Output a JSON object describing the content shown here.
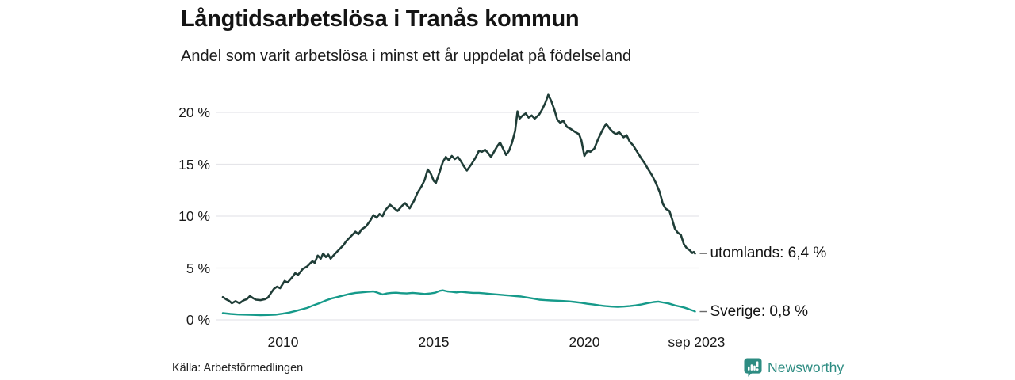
{
  "header": {
    "title": "Långtidsarbetslösa i Tranås kommun",
    "subtitle": "Andel som varit arbetslösa i minst ett år uppdelat på födelseland"
  },
  "footer": {
    "source": "Källa: Arbetsförmedlingen",
    "brand": "Newsworthy",
    "brand_color": "#2d8c82"
  },
  "chart_data": {
    "type": "line",
    "title": "Långtidsarbetslösa i Tranås kommun",
    "subtitle": "Andel som varit arbetslösa i minst ett år uppdelat på födelseland",
    "xlabel": "",
    "ylabel": "",
    "x_range": [
      2008.0,
      2023.75
    ],
    "ylim": [
      0,
      22
    ],
    "grid": true,
    "grid_color": "#e5e5e9",
    "y_ticks": [
      {
        "v": 0,
        "label": "0 %"
      },
      {
        "v": 5,
        "label": "5 %"
      },
      {
        "v": 10,
        "label": "10 %"
      },
      {
        "v": 15,
        "label": "15 %"
      },
      {
        "v": 20,
        "label": "20 %"
      }
    ],
    "x_ticks": [
      {
        "t": 2010,
        "label": "2010"
      },
      {
        "t": 2015,
        "label": "2015"
      },
      {
        "t": 2020,
        "label": "2020"
      },
      {
        "t": 2023.72,
        "label": "sep 2023"
      }
    ],
    "series": [
      {
        "name": "utomlands",
        "end_label": "utomlands: 6,4 %",
        "last_value": 6.4,
        "color": "#1f3d37",
        "width": 2.6,
        "points": [
          [
            2008.0,
            2.2
          ],
          [
            2008.1,
            2.0
          ],
          [
            2008.2,
            1.85
          ],
          [
            2008.3,
            1.6
          ],
          [
            2008.42,
            1.8
          ],
          [
            2008.55,
            1.6
          ],
          [
            2008.7,
            1.9
          ],
          [
            2008.8,
            2.0
          ],
          [
            2008.9,
            2.3
          ],
          [
            2009.0,
            2.1
          ],
          [
            2009.1,
            1.95
          ],
          [
            2009.25,
            1.9
          ],
          [
            2009.4,
            2.0
          ],
          [
            2009.5,
            2.15
          ],
          [
            2009.6,
            2.6
          ],
          [
            2009.7,
            3.0
          ],
          [
            2009.8,
            3.2
          ],
          [
            2009.9,
            3.05
          ],
          [
            2010.05,
            3.75
          ],
          [
            2010.15,
            3.6
          ],
          [
            2010.3,
            4.1
          ],
          [
            2010.4,
            4.5
          ],
          [
            2010.5,
            4.35
          ],
          [
            2010.65,
            4.9
          ],
          [
            2010.8,
            5.15
          ],
          [
            2010.9,
            5.45
          ],
          [
            2010.97,
            5.65
          ],
          [
            2011.05,
            5.5
          ],
          [
            2011.15,
            6.2
          ],
          [
            2011.25,
            5.9
          ],
          [
            2011.33,
            6.4
          ],
          [
            2011.42,
            6.05
          ],
          [
            2011.5,
            6.3
          ],
          [
            2011.58,
            5.9
          ],
          [
            2011.7,
            6.3
          ],
          [
            2011.8,
            6.6
          ],
          [
            2011.9,
            6.9
          ],
          [
            2012.0,
            7.2
          ],
          [
            2012.1,
            7.6
          ],
          [
            2012.2,
            7.9
          ],
          [
            2012.3,
            8.2
          ],
          [
            2012.4,
            8.5
          ],
          [
            2012.5,
            8.25
          ],
          [
            2012.6,
            8.7
          ],
          [
            2012.75,
            9.0
          ],
          [
            2012.9,
            9.6
          ],
          [
            2013.0,
            10.1
          ],
          [
            2013.1,
            9.85
          ],
          [
            2013.2,
            10.2
          ],
          [
            2013.3,
            10.0
          ],
          [
            2013.4,
            10.6
          ],
          [
            2013.55,
            11.1
          ],
          [
            2013.65,
            10.85
          ],
          [
            2013.8,
            10.5
          ],
          [
            2013.95,
            11.0
          ],
          [
            2014.05,
            11.25
          ],
          [
            2014.2,
            10.75
          ],
          [
            2014.35,
            11.5
          ],
          [
            2014.45,
            12.2
          ],
          [
            2014.6,
            12.9
          ],
          [
            2014.7,
            13.5
          ],
          [
            2014.8,
            14.5
          ],
          [
            2014.9,
            14.1
          ],
          [
            2015.0,
            13.4
          ],
          [
            2015.07,
            13.2
          ],
          [
            2015.2,
            14.3
          ],
          [
            2015.3,
            15.2
          ],
          [
            2015.4,
            15.7
          ],
          [
            2015.5,
            15.4
          ],
          [
            2015.6,
            15.8
          ],
          [
            2015.7,
            15.5
          ],
          [
            2015.8,
            15.7
          ],
          [
            2015.9,
            15.3
          ],
          [
            2016.0,
            14.8
          ],
          [
            2016.1,
            14.4
          ],
          [
            2016.25,
            15.0
          ],
          [
            2016.4,
            15.7
          ],
          [
            2016.5,
            16.3
          ],
          [
            2016.6,
            16.2
          ],
          [
            2016.7,
            16.4
          ],
          [
            2016.8,
            16.1
          ],
          [
            2016.9,
            15.7
          ],
          [
            2017.0,
            16.2
          ],
          [
            2017.1,
            16.7
          ],
          [
            2017.2,
            17.1
          ],
          [
            2017.3,
            16.5
          ],
          [
            2017.4,
            15.9
          ],
          [
            2017.5,
            16.3
          ],
          [
            2017.6,
            17.1
          ],
          [
            2017.7,
            18.2
          ],
          [
            2017.78,
            20.1
          ],
          [
            2017.85,
            19.4
          ],
          [
            2017.95,
            19.7
          ],
          [
            2018.05,
            19.9
          ],
          [
            2018.15,
            19.5
          ],
          [
            2018.25,
            19.7
          ],
          [
            2018.35,
            19.4
          ],
          [
            2018.5,
            19.8
          ],
          [
            2018.6,
            20.3
          ],
          [
            2018.7,
            20.9
          ],
          [
            2018.8,
            21.7
          ],
          [
            2018.9,
            21.1
          ],
          [
            2019.0,
            20.3
          ],
          [
            2019.1,
            19.3
          ],
          [
            2019.2,
            19.0
          ],
          [
            2019.3,
            19.2
          ],
          [
            2019.42,
            18.6
          ],
          [
            2019.55,
            18.4
          ],
          [
            2019.7,
            18.1
          ],
          [
            2019.82,
            17.9
          ],
          [
            2019.9,
            17.3
          ],
          [
            2020.0,
            15.8
          ],
          [
            2020.1,
            16.3
          ],
          [
            2020.2,
            16.2
          ],
          [
            2020.33,
            16.5
          ],
          [
            2020.45,
            17.4
          ],
          [
            2020.6,
            18.3
          ],
          [
            2020.72,
            18.9
          ],
          [
            2020.85,
            18.4
          ],
          [
            2020.95,
            18.1
          ],
          [
            2021.05,
            17.9
          ],
          [
            2021.15,
            18.1
          ],
          [
            2021.3,
            17.6
          ],
          [
            2021.4,
            17.8
          ],
          [
            2021.5,
            17.2
          ],
          [
            2021.62,
            16.8
          ],
          [
            2021.75,
            16.2
          ],
          [
            2021.88,
            15.6
          ],
          [
            2022.0,
            15.1
          ],
          [
            2022.12,
            14.5
          ],
          [
            2022.25,
            13.9
          ],
          [
            2022.37,
            13.2
          ],
          [
            2022.5,
            12.3
          ],
          [
            2022.6,
            11.2
          ],
          [
            2022.7,
            10.7
          ],
          [
            2022.82,
            10.5
          ],
          [
            2022.92,
            9.6
          ],
          [
            2023.0,
            8.8
          ],
          [
            2023.1,
            8.4
          ],
          [
            2023.2,
            8.2
          ],
          [
            2023.3,
            7.3
          ],
          [
            2023.4,
            6.9
          ],
          [
            2023.5,
            6.7
          ],
          [
            2023.58,
            6.45
          ],
          [
            2023.63,
            6.55
          ],
          [
            2023.67,
            6.4
          ]
        ]
      },
      {
        "name": "Sverige",
        "end_label": "Sverige: 0,8 %",
        "last_value": 0.8,
        "color": "#169a8a",
        "width": 2.4,
        "points": [
          [
            2008.0,
            0.65
          ],
          [
            2008.25,
            0.57
          ],
          [
            2008.5,
            0.52
          ],
          [
            2008.75,
            0.5
          ],
          [
            2009.0,
            0.48
          ],
          [
            2009.25,
            0.46
          ],
          [
            2009.5,
            0.47
          ],
          [
            2009.75,
            0.5
          ],
          [
            2010.0,
            0.6
          ],
          [
            2010.2,
            0.7
          ],
          [
            2010.4,
            0.85
          ],
          [
            2010.6,
            1.0
          ],
          [
            2010.8,
            1.15
          ],
          [
            2011.0,
            1.4
          ],
          [
            2011.2,
            1.6
          ],
          [
            2011.4,
            1.85
          ],
          [
            2011.6,
            2.05
          ],
          [
            2011.8,
            2.2
          ],
          [
            2012.0,
            2.35
          ],
          [
            2012.2,
            2.5
          ],
          [
            2012.4,
            2.6
          ],
          [
            2012.6,
            2.65
          ],
          [
            2012.8,
            2.7
          ],
          [
            2013.0,
            2.75
          ],
          [
            2013.15,
            2.6
          ],
          [
            2013.3,
            2.45
          ],
          [
            2013.45,
            2.55
          ],
          [
            2013.6,
            2.6
          ],
          [
            2013.75,
            2.62
          ],
          [
            2013.9,
            2.58
          ],
          [
            2014.1,
            2.55
          ],
          [
            2014.3,
            2.6
          ],
          [
            2014.5,
            2.55
          ],
          [
            2014.7,
            2.5
          ],
          [
            2014.9,
            2.55
          ],
          [
            2015.05,
            2.62
          ],
          [
            2015.2,
            2.8
          ],
          [
            2015.3,
            2.85
          ],
          [
            2015.45,
            2.75
          ],
          [
            2015.6,
            2.7
          ],
          [
            2015.75,
            2.65
          ],
          [
            2015.9,
            2.7
          ],
          [
            2016.1,
            2.65
          ],
          [
            2016.3,
            2.6
          ],
          [
            2016.5,
            2.6
          ],
          [
            2016.7,
            2.55
          ],
          [
            2016.9,
            2.5
          ],
          [
            2017.1,
            2.45
          ],
          [
            2017.3,
            2.4
          ],
          [
            2017.5,
            2.35
          ],
          [
            2017.7,
            2.3
          ],
          [
            2017.9,
            2.25
          ],
          [
            2018.1,
            2.15
          ],
          [
            2018.3,
            2.05
          ],
          [
            2018.5,
            1.95
          ],
          [
            2018.7,
            1.9
          ],
          [
            2018.9,
            1.87
          ],
          [
            2019.1,
            1.85
          ],
          [
            2019.3,
            1.82
          ],
          [
            2019.5,
            1.78
          ],
          [
            2019.7,
            1.72
          ],
          [
            2019.9,
            1.65
          ],
          [
            2020.1,
            1.55
          ],
          [
            2020.3,
            1.48
          ],
          [
            2020.5,
            1.4
          ],
          [
            2020.7,
            1.33
          ],
          [
            2020.9,
            1.28
          ],
          [
            2021.1,
            1.26
          ],
          [
            2021.3,
            1.28
          ],
          [
            2021.5,
            1.33
          ],
          [
            2021.7,
            1.4
          ],
          [
            2021.9,
            1.5
          ],
          [
            2022.1,
            1.62
          ],
          [
            2022.3,
            1.72
          ],
          [
            2022.45,
            1.76
          ],
          [
            2022.6,
            1.68
          ],
          [
            2022.8,
            1.58
          ],
          [
            2023.0,
            1.4
          ],
          [
            2023.15,
            1.3
          ],
          [
            2023.3,
            1.2
          ],
          [
            2023.45,
            1.05
          ],
          [
            2023.55,
            0.95
          ],
          [
            2023.62,
            0.88
          ],
          [
            2023.67,
            0.8
          ]
        ]
      }
    ]
  }
}
